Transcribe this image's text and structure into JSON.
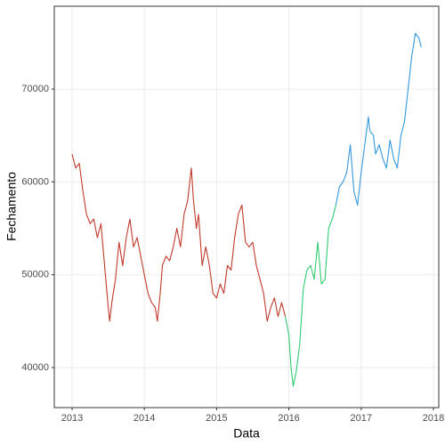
{
  "chart_data": {
    "type": "line",
    "x_label": "Data",
    "y_label": "Fechamento",
    "xlim": [
      2012.754,
      2018.074
    ],
    "xticks": [
      2013,
      2014,
      2015,
      2016,
      2017,
      2018
    ],
    "ylim": [
      35686,
      78926
    ],
    "yticks": [
      40000,
      50000,
      60000,
      70000
    ],
    "grid": true,
    "series": [
      {
        "color": "#c0392b",
        "x": [
          2013.0,
          2013.05,
          2013.1,
          2013.15,
          2013.2,
          2013.25,
          2013.3,
          2013.35,
          2013.4,
          2013.45,
          2013.5,
          2013.52,
          2013.55,
          2013.6,
          2013.65,
          2013.7,
          2013.75,
          2013.8,
          2013.85,
          2013.9,
          2013.95,
          2014.0,
          2014.05,
          2014.1,
          2014.15,
          2014.18,
          2014.22,
          2014.25,
          2014.3,
          2014.35,
          2014.4,
          2014.45,
          2014.5,
          2014.55,
          2014.6,
          2014.65,
          2014.68,
          2014.72,
          2014.75,
          2014.8,
          2014.85,
          2014.9,
          2014.95,
          2015.0,
          2015.05,
          2015.1,
          2015.15,
          2015.2,
          2015.25,
          2015.3,
          2015.35,
          2015.4,
          2015.45,
          2015.5,
          2015.55,
          2015.6,
          2015.65,
          2015.7,
          2015.75,
          2015.8,
          2015.85,
          2015.9,
          2015.95
        ],
        "values": [
          63000,
          61500,
          62000,
          59000,
          56500,
          55500,
          56000,
          54000,
          55500,
          51000,
          46500,
          45000,
          47000,
          49500,
          53500,
          51000,
          54000,
          56000,
          53000,
          54000,
          52000,
          50000,
          48000,
          47000,
          46500,
          45000,
          48000,
          51000,
          52000,
          51500,
          53000,
          55000,
          53000,
          56500,
          58000,
          61500,
          58000,
          55000,
          56500,
          51000,
          53000,
          51000,
          48000,
          47500,
          49000,
          48000,
          51000,
          50500,
          54000,
          56500,
          57500,
          53500,
          53000,
          53500,
          51000,
          49500,
          48000,
          45000,
          46500,
          47500,
          45500,
          47000,
          45500
        ]
      },
      {
        "color": "#2ecc71",
        "x": [
          2015.95,
          2016.0,
          2016.03,
          2016.06,
          2016.1,
          2016.15,
          2016.2,
          2016.25,
          2016.3,
          2016.35,
          2016.4,
          2016.45,
          2016.5,
          2016.55,
          2016.6,
          2016.65
        ],
        "values": [
          45500,
          43500,
          40000,
          38000,
          39500,
          42500,
          48500,
          50500,
          51000,
          49500,
          53500,
          49000,
          49500,
          55000,
          56000,
          57500
        ]
      },
      {
        "color": "#3498db",
        "x": [
          2016.65,
          2016.7,
          2016.75,
          2016.8,
          2016.85,
          2016.9,
          2016.95,
          2017.0,
          2017.05,
          2017.1,
          2017.12,
          2017.17,
          2017.2,
          2017.25,
          2017.3,
          2017.35,
          2017.4,
          2017.45,
          2017.5,
          2017.55,
          2017.6,
          2017.65,
          2017.7,
          2017.75,
          2017.8,
          2017.83
        ],
        "values": [
          57500,
          59500,
          60000,
          61000,
          64000,
          59000,
          57500,
          61000,
          64000,
          67000,
          65500,
          65000,
          63000,
          64000,
          62500,
          61500,
          64500,
          62500,
          61500,
          65000,
          66500,
          70000,
          73500,
          76000,
          75500,
          74500
        ]
      }
    ]
  }
}
